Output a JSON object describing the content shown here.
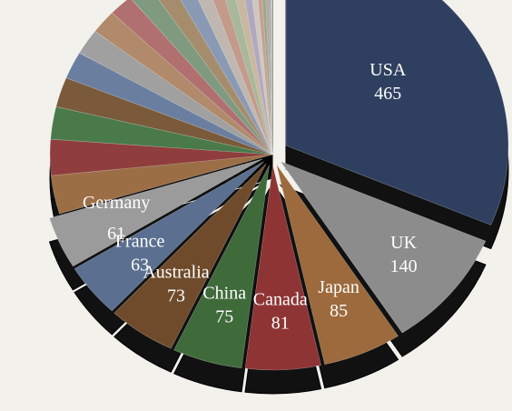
{
  "chart_data": {
    "type": "pie",
    "categories": [
      "USA",
      "UK",
      "Japan",
      "Canada",
      "China",
      "Australia",
      "France",
      "Germany",
      null,
      null,
      null,
      null,
      null,
      null,
      null,
      null,
      null,
      null,
      null,
      null,
      null,
      null,
      null,
      null,
      null,
      null,
      null,
      null,
      null,
      null
    ],
    "values": [
      465,
      140,
      85,
      81,
      75,
      73,
      63,
      61,
      45,
      42,
      38,
      35,
      32,
      30,
      28,
      26,
      24,
      22,
      20,
      18,
      16,
      14,
      12,
      10,
      8,
      6,
      5,
      4,
      3,
      2
    ],
    "colors": [
      "#2e3f60",
      "#8c8c8c",
      "#9c6a3c",
      "#8e3434",
      "#3f6a3a",
      "#6f4b2b",
      "#5b6f90",
      "#9b9b9b",
      "#9c6e45",
      "#8f3d3d",
      "#4a7a4a",
      "#7a5a3a",
      "#6a7f9f",
      "#a0a0a0",
      "#b08a6a",
      "#b07070",
      "#7f9a7f",
      "#a58c6c",
      "#8a9ab5",
      "#c0b8b0",
      "#c49a8a",
      "#a8b89a",
      "#c8b8a0",
      "#b0a8c0",
      "#d0c8c0",
      "#c8a090",
      "#9aa890",
      "#b8a890",
      "#a0a8b8",
      "#c8c0b8"
    ]
  }
}
